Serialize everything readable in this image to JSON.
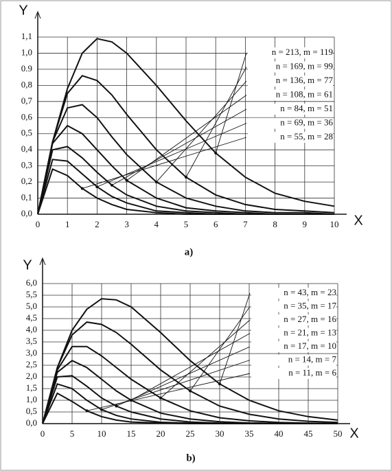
{
  "chart_data": [
    {
      "type": "line",
      "caption": "a)",
      "x_label": "X",
      "y_label": "Y",
      "grid": true,
      "color": "#111111",
      "x": [
        0,
        0.5,
        1,
        1.5,
        2,
        2.5,
        3,
        4,
        5,
        6,
        7,
        8,
        9,
        10
      ],
      "xlim": [
        0,
        10
      ],
      "xticks": [
        0,
        1,
        2,
        3,
        4,
        5,
        6,
        7,
        8,
        9,
        10
      ],
      "ylim": [
        0,
        1.1
      ],
      "yticks": [
        {
          "value": 0,
          "label": "0,0"
        },
        {
          "value": 0.1,
          "label": "0,1"
        },
        {
          "value": 0.2,
          "label": "0,2"
        },
        {
          "value": 0.3,
          "label": "0,3"
        },
        {
          "value": 0.4,
          "label": "0,4"
        },
        {
          "value": 0.5,
          "label": "0,5"
        },
        {
          "value": 0.6,
          "label": "0,6"
        },
        {
          "value": 0.7,
          "label": "0,7"
        },
        {
          "value": 0.8,
          "label": "0,8"
        },
        0.9,
        {
          "value": 1.0,
          "label": "1,0"
        },
        {
          "value": 1.1,
          "label": "1,1"
        }
      ],
      "series": [
        {
          "name": "n = 213, m = 119",
          "values": [
            0,
            0.45,
            0.78,
            1.0,
            1.09,
            1.07,
            1.0,
            0.8,
            0.58,
            0.38,
            0.23,
            0.13,
            0.08,
            0.05
          ]
        },
        {
          "name": "n = 169, m = 99",
          "values": [
            0,
            0.45,
            0.75,
            0.86,
            0.83,
            0.74,
            0.62,
            0.4,
            0.23,
            0.12,
            0.06,
            0.03,
            0.02,
            0.01
          ]
        },
        {
          "name": "n = 136, m = 77",
          "values": [
            0,
            0.45,
            0.66,
            0.68,
            0.6,
            0.48,
            0.37,
            0.2,
            0.1,
            0.05,
            0.02,
            0.01,
            0.01,
            0
          ]
        },
        {
          "name": "n = 108, m = 61",
          "values": [
            0,
            0.44,
            0.55,
            0.5,
            0.4,
            0.3,
            0.21,
            0.1,
            0.04,
            0.02,
            0.01,
            0,
            0,
            0
          ]
        },
        {
          "name": "n = 84, m = 51",
          "values": [
            0,
            0.4,
            0.42,
            0.35,
            0.26,
            0.18,
            0.12,
            0.05,
            0.02,
            0.01,
            0,
            0,
            0,
            0
          ]
        },
        {
          "name": "n = 69, m = 36",
          "values": [
            0,
            0.34,
            0.33,
            0.25,
            0.17,
            0.11,
            0.07,
            0.02,
            0.01,
            0,
            0,
            0,
            0,
            0
          ]
        },
        {
          "name": "n = 55, m = 28",
          "values": [
            0,
            0.28,
            0.24,
            0.16,
            0.1,
            0.06,
            0.03,
            0.01,
            0,
            0,
            0,
            0,
            0,
            0
          ]
        }
      ]
    },
    {
      "type": "line",
      "caption": "b)",
      "x_label": "X",
      "y_label": "Y",
      "grid": true,
      "color": "#111111",
      "x": [
        0,
        2.5,
        5,
        7.5,
        10,
        12.5,
        15,
        20,
        25,
        30,
        35,
        40,
        45,
        50
      ],
      "xlim": [
        0,
        50
      ],
      "xticks": [
        0,
        5,
        10,
        15,
        20,
        25,
        30,
        35,
        40,
        45,
        50
      ],
      "ylim": [
        0,
        6
      ],
      "yticks": [
        {
          "value": 0,
          "label": "0,0"
        },
        {
          "value": 0.5,
          "label": "0,5"
        },
        {
          "value": 1.0,
          "label": "1,0"
        },
        {
          "value": 1.5,
          "label": "1,5"
        },
        {
          "value": 2.0,
          "label": "2,0"
        },
        {
          "value": 2.5,
          "label": "2,5"
        },
        {
          "value": 3.0,
          "label": "3,0"
        },
        {
          "value": 3.5,
          "label": "3,5"
        },
        {
          "value": 4.0,
          "label": "4,0"
        },
        {
          "value": 4.5,
          "label": "4,5"
        },
        {
          "value": 5.0,
          "label": "5,0"
        },
        {
          "value": 5.5,
          "label": "5,5"
        },
        {
          "value": 6.0,
          "label": "6,0"
        }
      ],
      "series": [
        {
          "name": "n = 43, m = 23",
          "values": [
            0,
            2.4,
            4.0,
            4.9,
            5.35,
            5.3,
            5.0,
            3.9,
            2.7,
            1.7,
            1.0,
            0.55,
            0.3,
            0.15
          ]
        },
        {
          "name": "n = 35, m = 17",
          "values": [
            0,
            2.4,
            3.8,
            4.35,
            4.25,
            3.9,
            3.4,
            2.3,
            1.4,
            0.75,
            0.4,
            0.2,
            0.1,
            0.05
          ]
        },
        {
          "name": "n = 27, m = 16",
          "values": [
            0,
            2.3,
            3.3,
            3.3,
            2.9,
            2.4,
            1.9,
            1.1,
            0.55,
            0.25,
            0.12,
            0.05,
            0.02,
            0.01
          ]
        },
        {
          "name": "n = 21, m = 13",
          "values": [
            0,
            2.2,
            2.7,
            2.4,
            1.9,
            1.4,
            1.0,
            0.45,
            0.2,
            0.08,
            0.03,
            0.01,
            0,
            0
          ]
        },
        {
          "name": "n = 17, m = 10",
          "values": [
            0,
            2.0,
            2.05,
            1.6,
            1.1,
            0.75,
            0.5,
            0.2,
            0.07,
            0.02,
            0.01,
            0,
            0,
            0
          ]
        },
        {
          "name": "n = 14, m = 7",
          "values": [
            0,
            1.7,
            1.5,
            1.0,
            0.6,
            0.35,
            0.2,
            0.06,
            0.02,
            0,
            0,
            0,
            0,
            0
          ]
        },
        {
          "name": "n = 11, m = 6",
          "values": [
            0,
            1.3,
            0.95,
            0.55,
            0.3,
            0.15,
            0.07,
            0.02,
            0,
            0,
            0,
            0,
            0,
            0
          ]
        }
      ]
    }
  ]
}
